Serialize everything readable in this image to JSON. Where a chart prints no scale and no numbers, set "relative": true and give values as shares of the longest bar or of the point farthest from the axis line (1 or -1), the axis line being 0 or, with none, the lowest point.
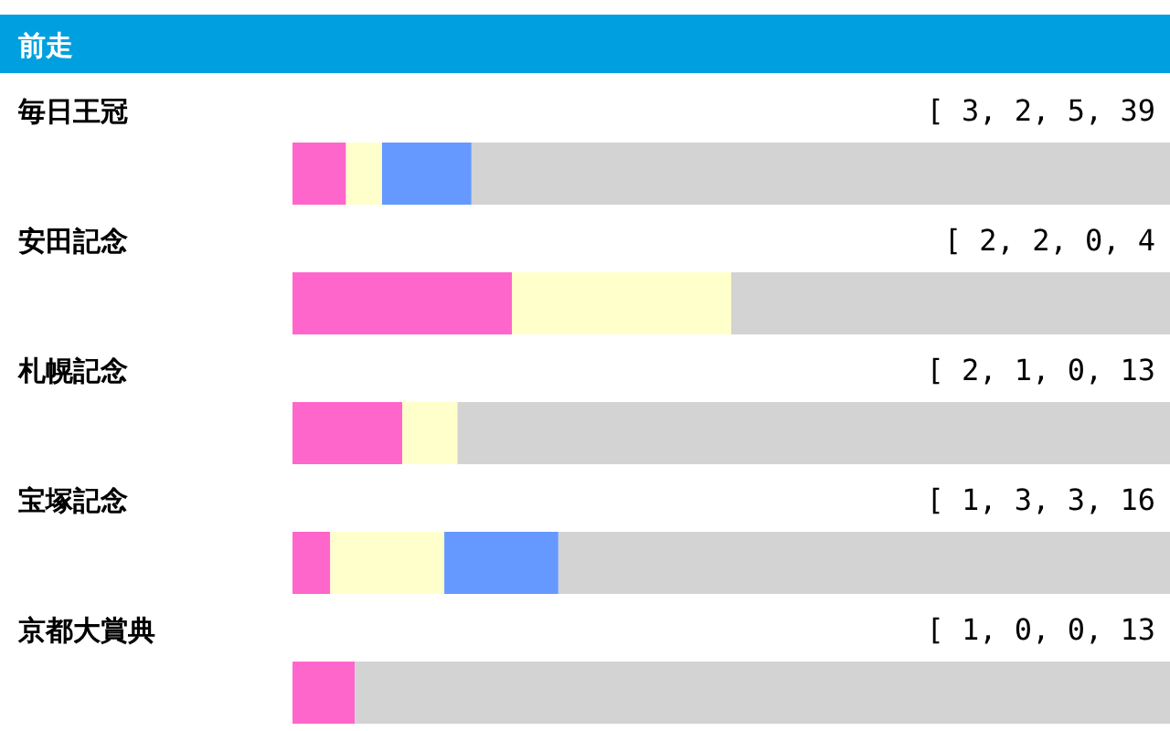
{
  "chart_data": {
    "type": "bar",
    "orientation": "horizontal",
    "stacked": true,
    "relative": true,
    "title": "前走",
    "categories": [
      "毎日王冠",
      "安田記念",
      "札幌記念",
      "宝塚記念",
      "京都大賞典"
    ],
    "series": [
      {
        "color": "#ff66cc",
        "values": [
          0.061,
          0.25,
          0.125,
          0.043,
          0.071
        ]
      },
      {
        "color": "#ffffcc",
        "values": [
          0.041,
          0.25,
          0.063,
          0.13,
          0
        ]
      },
      {
        "color": "#6699ff",
        "values": [
          0.102,
          0,
          0,
          0.13,
          0
        ]
      },
      {
        "color": "#d3d3d3",
        "values": [
          0.796,
          0.5,
          0.812,
          0.697,
          0.929
        ]
      }
    ],
    "annotations": [
      "[ 3, 2, 5, 39",
      "[ 2, 2, 0, 4",
      "[ 2, 1, 0, 13",
      "[ 1, 3, 3, 16",
      "[ 1, 0, 0, 13"
    ]
  }
}
